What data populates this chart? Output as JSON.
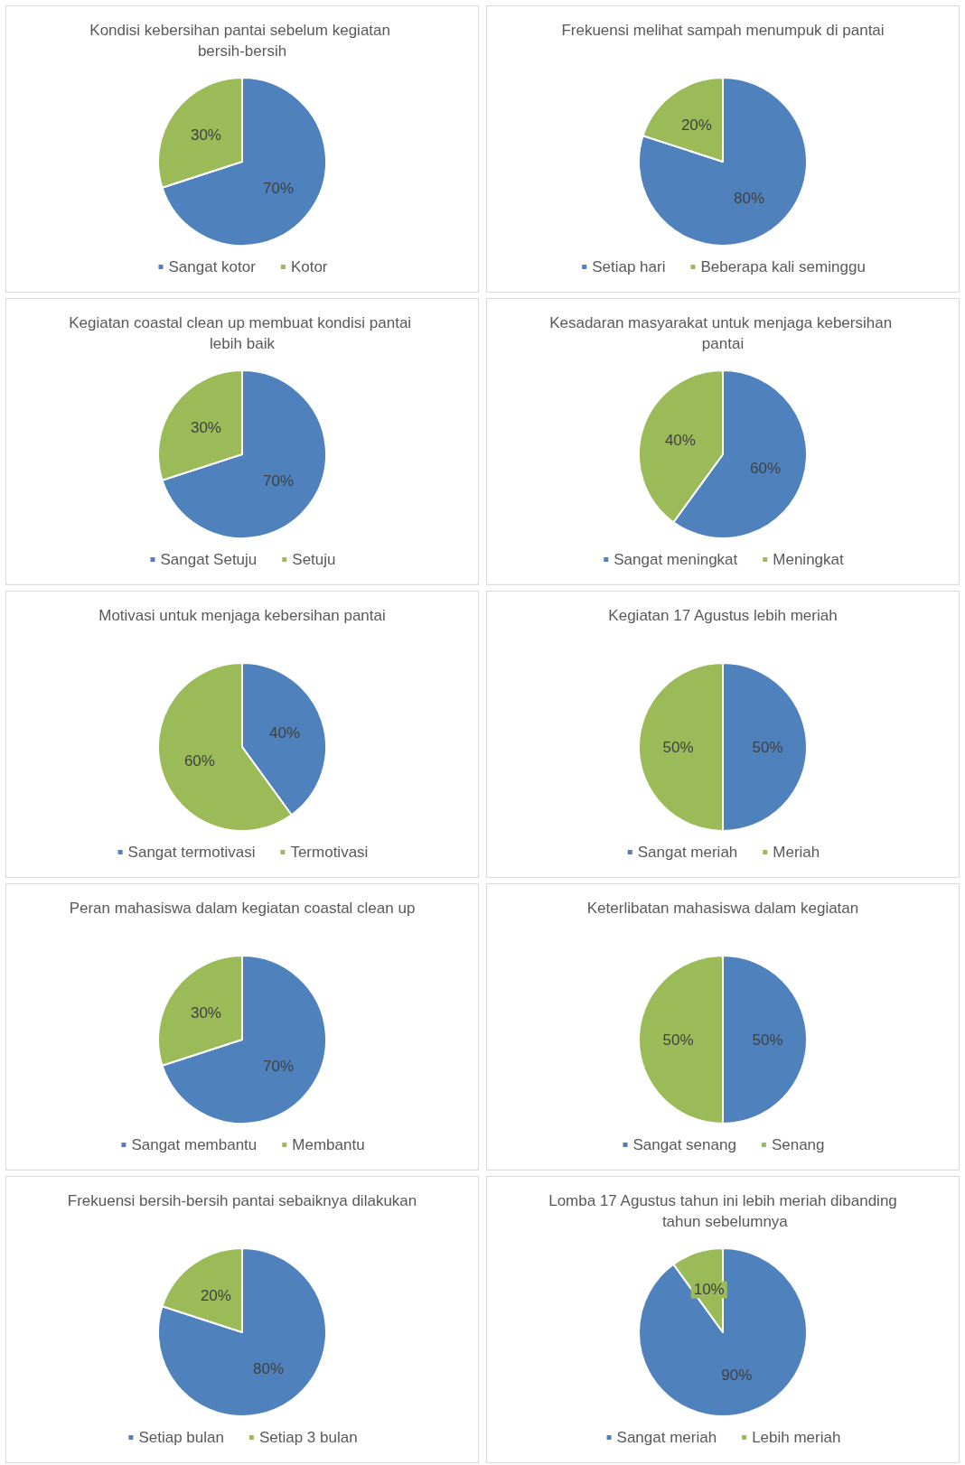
{
  "chart_data": [
    {
      "type": "pie",
      "title": "Kondisi kebersihan pantai sebelum kegiatan bersih-bersih",
      "categories": [
        "Sangat kotor",
        "Kotor"
      ],
      "values": [
        70,
        30
      ],
      "value_labels": [
        "70%",
        "30%"
      ],
      "colors": [
        "#4f81bd",
        "#9bbb59"
      ],
      "legend": "bottom"
    },
    {
      "type": "pie",
      "title": "Frekuensi melihat sampah menumpuk di pantai",
      "categories": [
        "Setiap hari",
        "Beberapa kali seminggu"
      ],
      "values": [
        80,
        20
      ],
      "value_labels": [
        "80%",
        "20%"
      ],
      "colors": [
        "#4f81bd",
        "#9bbb59"
      ],
      "legend": "bottom"
    },
    {
      "type": "pie",
      "title": "Kegiatan coastal clean up membuat kondisi pantai lebih baik",
      "categories": [
        "Sangat Setuju",
        "Setuju"
      ],
      "values": [
        70,
        30
      ],
      "value_labels": [
        "70%",
        "30%"
      ],
      "colors": [
        "#4f81bd",
        "#9bbb59"
      ],
      "legend": "bottom"
    },
    {
      "type": "pie",
      "title": "Kesadaran masyarakat untuk menjaga kebersihan pantai",
      "categories": [
        "Sangat meningkat",
        "Meningkat"
      ],
      "values": [
        60,
        40
      ],
      "value_labels": [
        "60%",
        "40%"
      ],
      "colors": [
        "#4f81bd",
        "#9bbb59"
      ],
      "legend": "bottom"
    },
    {
      "type": "pie",
      "title": "Motivasi untuk menjaga kebersihan pantai",
      "categories": [
        "Sangat termotivasi",
        "Termotivasi"
      ],
      "values": [
        40,
        60
      ],
      "value_labels": [
        "40%",
        "60%"
      ],
      "colors": [
        "#4f81bd",
        "#9bbb59"
      ],
      "legend": "bottom"
    },
    {
      "type": "pie",
      "title": "Kegiatan 17 Agustus lebih meriah",
      "categories": [
        "Sangat meriah",
        "Meriah"
      ],
      "values": [
        50,
        50
      ],
      "value_labels": [
        "50%",
        "50%"
      ],
      "colors": [
        "#4f81bd",
        "#9bbb59"
      ],
      "legend": "bottom"
    },
    {
      "type": "pie",
      "title": "Peran mahasiswa dalam kegiatan coastal clean up",
      "categories": [
        "Sangat membantu",
        "Membantu"
      ],
      "values": [
        70,
        30
      ],
      "value_labels": [
        "70%",
        "30%"
      ],
      "colors": [
        "#4f81bd",
        "#9bbb59"
      ],
      "legend": "bottom"
    },
    {
      "type": "pie",
      "title": "Keterlibatan mahasiswa dalam kegiatan",
      "categories": [
        "Sangat senang",
        "Senang"
      ],
      "values": [
        50,
        50
      ],
      "value_labels": [
        "50%",
        "50%"
      ],
      "colors": [
        "#4f81bd",
        "#9bbb59"
      ],
      "legend": "bottom"
    },
    {
      "type": "pie",
      "title": "Frekuensi bersih-bersih pantai sebaiknya dilakukan",
      "categories": [
        "Setiap bulan",
        "Setiap 3 bulan"
      ],
      "values": [
        80,
        20
      ],
      "value_labels": [
        "80%",
        "20%"
      ],
      "colors": [
        "#4f81bd",
        "#9bbb59"
      ],
      "legend": "bottom"
    },
    {
      "type": "pie",
      "title": "Lomba 17 Agustus tahun ini lebih meriah dibanding tahun sebelumnya",
      "categories": [
        "Sangat meriah",
        "Lebih meriah"
      ],
      "values": [
        90,
        10
      ],
      "value_labels": [
        "90%",
        "10%"
      ],
      "colors": [
        "#4f81bd",
        "#9bbb59"
      ],
      "legend": "bottom"
    }
  ]
}
